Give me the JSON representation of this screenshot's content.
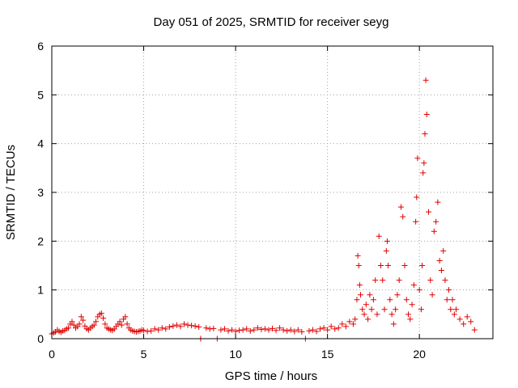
{
  "chart_data": {
    "type": "scatter",
    "title": "Day 051 of 2025, SRMTID for receiver seyg",
    "xlabel": "GPS time / hours",
    "ylabel": "SRMTID / TECUs",
    "xlim": [
      0,
      24
    ],
    "ylim": [
      0,
      6
    ],
    "xticks": [
      0,
      5,
      10,
      15,
      20
    ],
    "yticks": [
      0,
      1,
      2,
      3,
      4,
      5,
      6
    ],
    "grid": true,
    "marker": "plus",
    "marker_color": "#e00000",
    "series": [
      {
        "name": "SRMTID",
        "points": [
          [
            0.0,
            0.1
          ],
          [
            0.1,
            0.12
          ],
          [
            0.2,
            0.14
          ],
          [
            0.3,
            0.18
          ],
          [
            0.4,
            0.15
          ],
          [
            0.5,
            0.13
          ],
          [
            0.6,
            0.16
          ],
          [
            0.7,
            0.17
          ],
          [
            0.8,
            0.2
          ],
          [
            0.9,
            0.22
          ],
          [
            1.0,
            0.3
          ],
          [
            1.1,
            0.35
          ],
          [
            1.2,
            0.28
          ],
          [
            1.3,
            0.22
          ],
          [
            1.4,
            0.25
          ],
          [
            1.5,
            0.3
          ],
          [
            1.6,
            0.45
          ],
          [
            1.7,
            0.38
          ],
          [
            1.8,
            0.26
          ],
          [
            1.9,
            0.2
          ],
          [
            2.0,
            0.18
          ],
          [
            2.1,
            0.22
          ],
          [
            2.2,
            0.25
          ],
          [
            2.3,
            0.28
          ],
          [
            2.4,
            0.35
          ],
          [
            2.5,
            0.45
          ],
          [
            2.6,
            0.5
          ],
          [
            2.7,
            0.52
          ],
          [
            2.8,
            0.42
          ],
          [
            2.9,
            0.3
          ],
          [
            3.0,
            0.22
          ],
          [
            3.1,
            0.2
          ],
          [
            3.2,
            0.18
          ],
          [
            3.3,
            0.17
          ],
          [
            3.4,
            0.2
          ],
          [
            3.5,
            0.25
          ],
          [
            3.6,
            0.3
          ],
          [
            3.7,
            0.35
          ],
          [
            3.8,
            0.28
          ],
          [
            3.9,
            0.4
          ],
          [
            4.0,
            0.45
          ],
          [
            4.1,
            0.3
          ],
          [
            4.2,
            0.22
          ],
          [
            4.3,
            0.18
          ],
          [
            4.4,
            0.16
          ],
          [
            4.5,
            0.15
          ],
          [
            4.6,
            0.14
          ],
          [
            4.7,
            0.15
          ],
          [
            4.8,
            0.16
          ],
          [
            4.9,
            0.18
          ],
          [
            5.0,
            0.17
          ],
          [
            5.2,
            0.15
          ],
          [
            5.4,
            0.16
          ],
          [
            5.6,
            0.2
          ],
          [
            5.8,
            0.18
          ],
          [
            6.0,
            0.22
          ],
          [
            6.2,
            0.2
          ],
          [
            6.4,
            0.24
          ],
          [
            6.6,
            0.26
          ],
          [
            6.8,
            0.28
          ],
          [
            7.0,
            0.25
          ],
          [
            7.2,
            0.3
          ],
          [
            7.4,
            0.28
          ],
          [
            7.6,
            0.27
          ],
          [
            7.8,
            0.26
          ],
          [
            8.0,
            0.24
          ],
          [
            8.1,
            0.0
          ],
          [
            8.4,
            0.22
          ],
          [
            8.6,
            0.2
          ],
          [
            8.8,
            0.21
          ],
          [
            9.0,
            0.0
          ],
          [
            9.2,
            0.18
          ],
          [
            9.4,
            0.2
          ],
          [
            9.6,
            0.16
          ],
          [
            9.8,
            0.18
          ],
          [
            10.0,
            0.15
          ],
          [
            10.2,
            0.17
          ],
          [
            10.4,
            0.18
          ],
          [
            10.6,
            0.2
          ],
          [
            10.8,
            0.16
          ],
          [
            11.0,
            0.18
          ],
          [
            11.2,
            0.22
          ],
          [
            11.4,
            0.19
          ],
          [
            11.6,
            0.2
          ],
          [
            11.8,
            0.18
          ],
          [
            12.0,
            0.21
          ],
          [
            12.2,
            0.17
          ],
          [
            12.4,
            0.22
          ],
          [
            12.6,
            0.18
          ],
          [
            12.8,
            0.16
          ],
          [
            13.0,
            0.18
          ],
          [
            13.2,
            0.15
          ],
          [
            13.4,
            0.18
          ],
          [
            13.6,
            0.14
          ],
          [
            13.8,
            0.0
          ],
          [
            14.0,
            0.16
          ],
          [
            14.2,
            0.18
          ],
          [
            14.4,
            0.15
          ],
          [
            14.6,
            0.2
          ],
          [
            14.8,
            0.22
          ],
          [
            15.0,
            0.18
          ],
          [
            15.2,
            0.25
          ],
          [
            15.4,
            0.2
          ],
          [
            15.6,
            0.22
          ],
          [
            15.8,
            0.3
          ],
          [
            16.0,
            0.25
          ],
          [
            16.2,
            0.35
          ],
          [
            16.4,
            0.3
          ],
          [
            16.5,
            0.4
          ],
          [
            16.6,
            0.8
          ],
          [
            16.65,
            1.7
          ],
          [
            16.7,
            1.5
          ],
          [
            16.75,
            1.1
          ],
          [
            16.8,
            0.9
          ],
          [
            16.9,
            0.6
          ],
          [
            17.0,
            0.5
          ],
          [
            17.1,
            0.7
          ],
          [
            17.2,
            0.4
          ],
          [
            17.3,
            0.9
          ],
          [
            17.4,
            0.6
          ],
          [
            17.5,
            0.8
          ],
          [
            17.6,
            1.2
          ],
          [
            17.7,
            0.5
          ],
          [
            17.8,
            2.1
          ],
          [
            17.9,
            1.5
          ],
          [
            18.0,
            1.2
          ],
          [
            18.1,
            0.6
          ],
          [
            18.2,
            1.8
          ],
          [
            18.25,
            2.0
          ],
          [
            18.3,
            1.5
          ],
          [
            18.4,
            0.8
          ],
          [
            18.5,
            0.5
          ],
          [
            18.6,
            0.3
          ],
          [
            18.7,
            0.6
          ],
          [
            18.8,
            0.9
          ],
          [
            18.9,
            1.2
          ],
          [
            19.0,
            2.7
          ],
          [
            19.1,
            2.5
          ],
          [
            19.2,
            1.5
          ],
          [
            19.3,
            0.8
          ],
          [
            19.4,
            0.5
          ],
          [
            19.5,
            0.4
          ],
          [
            19.6,
            0.7
          ],
          [
            19.7,
            1.1
          ],
          [
            19.8,
            2.4
          ],
          [
            19.85,
            2.9
          ],
          [
            19.9,
            3.7
          ],
          [
            20.0,
            1.0
          ],
          [
            20.1,
            0.6
          ],
          [
            20.15,
            1.5
          ],
          [
            20.2,
            3.4
          ],
          [
            20.25,
            3.6
          ],
          [
            20.3,
            4.2
          ],
          [
            20.35,
            5.3
          ],
          [
            20.4,
            4.6
          ],
          [
            20.5,
            2.6
          ],
          [
            20.6,
            1.2
          ],
          [
            20.7,
            0.9
          ],
          [
            20.8,
            2.2
          ],
          [
            20.9,
            2.4
          ],
          [
            21.0,
            2.8
          ],
          [
            21.1,
            1.6
          ],
          [
            21.2,
            1.4
          ],
          [
            21.3,
            1.8
          ],
          [
            21.4,
            1.2
          ],
          [
            21.5,
            0.8
          ],
          [
            21.6,
            1.0
          ],
          [
            21.7,
            0.6
          ],
          [
            21.8,
            0.8
          ],
          [
            21.9,
            0.5
          ],
          [
            22.0,
            0.6
          ],
          [
            22.2,
            0.4
          ],
          [
            22.4,
            0.3
          ],
          [
            22.6,
            0.45
          ],
          [
            22.8,
            0.35
          ],
          [
            23.0,
            0.18
          ]
        ]
      }
    ]
  }
}
